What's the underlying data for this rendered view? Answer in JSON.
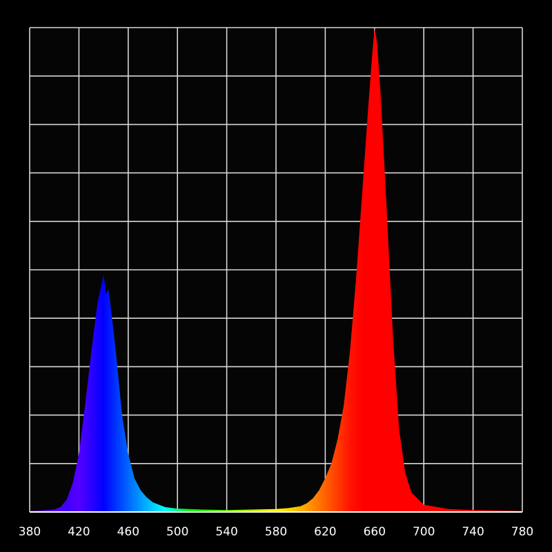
{
  "chart_data": {
    "type": "area",
    "title": "",
    "xlabel": "",
    "ylabel": "",
    "xlim": [
      380,
      780
    ],
    "ylim": [
      0,
      1
    ],
    "x_ticks": [
      380,
      420,
      460,
      500,
      540,
      580,
      620,
      660,
      700,
      740,
      780
    ],
    "x_tick_labels": [
      "380",
      "420",
      "460",
      "500",
      "540",
      "580",
      "620",
      "660",
      "700",
      "740",
      "780"
    ],
    "y_gridlines": 10,
    "grid": true,
    "fill": "wavelength-color spectrum",
    "series": [
      {
        "x": [
          380,
          390,
          400,
          405,
          410,
          415,
          420,
          425,
          430,
          435,
          440,
          442,
          444,
          446,
          450,
          455,
          460,
          465,
          470,
          475,
          480,
          490,
          500,
          520,
          540,
          560,
          580,
          590,
          600,
          605,
          610,
          615,
          620,
          625,
          630,
          635,
          640,
          645,
          650,
          655,
          658,
          660,
          662,
          665,
          670,
          675,
          680,
          685,
          690,
          700,
          720,
          740,
          760,
          780
        ],
        "y": [
          0.002,
          0.003,
          0.005,
          0.01,
          0.025,
          0.06,
          0.12,
          0.22,
          0.33,
          0.43,
          0.49,
          0.45,
          0.46,
          0.42,
          0.33,
          0.2,
          0.12,
          0.07,
          0.045,
          0.03,
          0.02,
          0.01,
          0.007,
          0.005,
          0.004,
          0.005,
          0.006,
          0.008,
          0.012,
          0.018,
          0.028,
          0.045,
          0.07,
          0.1,
          0.15,
          0.22,
          0.33,
          0.48,
          0.66,
          0.84,
          0.94,
          1.0,
          0.97,
          0.86,
          0.62,
          0.36,
          0.17,
          0.08,
          0.04,
          0.015,
          0.006,
          0.004,
          0.003,
          0.002
        ]
      }
    ]
  }
}
